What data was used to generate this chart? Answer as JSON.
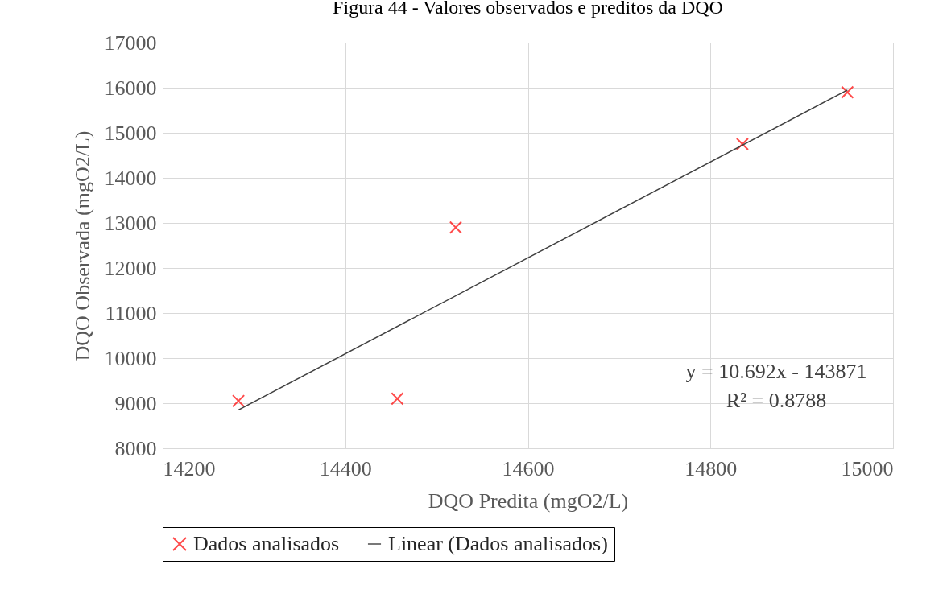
{
  "chart_data": {
    "type": "scatter",
    "title": "Figura 44 - Valores observados e preditos da DQO",
    "xlabel": "DQO Predita (mgO2/L)",
    "ylabel": "DQO Observada (mgO2/L)",
    "xlim": [
      14200,
      15000
    ],
    "xticks": [
      14200,
      14400,
      14600,
      14800,
      15000
    ],
    "ylim": [
      8000,
      17000
    ],
    "yticks": [
      8000,
      9000,
      10000,
      11000,
      12000,
      13000,
      14000,
      15000,
      16000,
      17000
    ],
    "grid": true,
    "legend": "bottom",
    "annotations": [
      "y = 10.692x - 143871",
      "R² = 0.8788"
    ],
    "series": [
      {
        "name": "Dados analisados",
        "marker": "cross",
        "color": "#ff0000",
        "x": [
          14283,
          14457,
          14521,
          14835,
          14950
        ],
        "values": [
          9050,
          9100,
          12900,
          14750,
          15900
        ]
      },
      {
        "name": "Linear (Dados analisados)",
        "type": "line",
        "marker": "none",
        "color": "#404040",
        "x": [
          14283,
          14950
        ],
        "values": [
          8850,
          15950
        ]
      }
    ]
  }
}
